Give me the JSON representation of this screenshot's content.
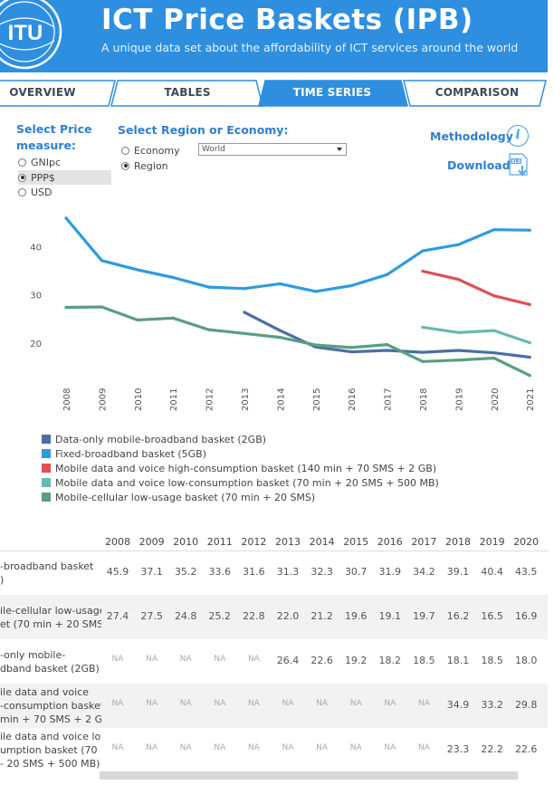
{
  "header": {
    "logo_text": "ITU",
    "title": "ICT Price Baskets (IPB)",
    "subtitle": "A unique data set about the affordability of ICT services around the world",
    "bg_color": "#2e8fe0"
  },
  "tabs": [
    {
      "label": "OVERVIEW",
      "active": false
    },
    {
      "label": "TABLES",
      "active": false
    },
    {
      "label": "TIME SERIES",
      "active": true
    },
    {
      "label": "COMPARISON",
      "active": false
    }
  ],
  "controls": {
    "price_measure_title": "Select Price measure:",
    "price_options": [
      {
        "label": "GNIpc",
        "selected": false
      },
      {
        "label": "PPP$",
        "selected": true
      },
      {
        "label": "USD",
        "selected": false
      }
    ],
    "region_title": "Select Region or Economy:",
    "region_options": [
      {
        "label": "Economy",
        "selected": false
      },
      {
        "label": "Region",
        "selected": true
      }
    ],
    "region_value": "World",
    "methodology_label": "Methodology",
    "methodology_icon": "info-icon",
    "download_label": "Download",
    "download_icon": "xls-download-icon",
    "download_icon_text": "XLS"
  },
  "chart_data": {
    "type": "line",
    "x": [
      2008,
      2009,
      2010,
      2011,
      2012,
      2013,
      2014,
      2015,
      2016,
      2017,
      2018,
      2019,
      2020,
      2021
    ],
    "ylim": [
      11,
      47
    ],
    "yticks": [
      20,
      30,
      40
    ],
    "grid": false,
    "legend_position": "bottom-left",
    "series": [
      {
        "name": "Data-only mobile-broadband basket (2GB)",
        "color": "#4a6fa5",
        "values": [
          null,
          null,
          null,
          null,
          null,
          26.4,
          22.6,
          19.2,
          18.2,
          18.5,
          18.1,
          18.5,
          18.0,
          17.1
        ]
      },
      {
        "name": "Fixed-broadband basket (5GB)",
        "color": "#2e9be0",
        "values": [
          45.9,
          37.1,
          35.2,
          33.6,
          31.6,
          31.3,
          32.3,
          30.7,
          31.9,
          34.2,
          39.1,
          40.4,
          43.5,
          43.4
        ]
      },
      {
        "name": "Mobile data and voice high-consumption basket (140 min + 70 SMS + 2 GB)",
        "color": "#e05050",
        "values": [
          null,
          null,
          null,
          null,
          null,
          null,
          null,
          null,
          null,
          null,
          34.9,
          33.2,
          29.8,
          28.0
        ]
      },
      {
        "name": "Mobile data and voice low-consumption basket (70 min + 20 SMS + 500 MB)",
        "color": "#6ab8b0",
        "values": [
          null,
          null,
          null,
          null,
          null,
          null,
          null,
          null,
          null,
          null,
          23.3,
          22.2,
          22.6,
          20.1
        ]
      },
      {
        "name": "Mobile-cellular low-usage basket (70 min + 20 SMS)",
        "color": "#5a9e80",
        "values": [
          27.4,
          27.5,
          24.8,
          25.2,
          22.8,
          22.0,
          21.2,
          19.6,
          19.1,
          19.7,
          16.2,
          16.5,
          16.9,
          13.3
        ]
      }
    ]
  },
  "table": {
    "years": [
      2008,
      2009,
      2010,
      2011,
      2012,
      2013,
      2014,
      2015,
      2016,
      2017,
      2018,
      2019,
      2020
    ],
    "rows": [
      {
        "label_lines": [
          "-broadband basket",
          ")"
        ],
        "values": [
          "45.9",
          "37.1",
          "35.2",
          "33.6",
          "31.6",
          "31.3",
          "32.3",
          "30.7",
          "31.9",
          "34.2",
          "39.1",
          "40.4",
          "43.5"
        ]
      },
      {
        "label_lines": [
          "ile-cellular low-usage",
          "et (70 min + 20 SMS)"
        ],
        "values": [
          "27.4",
          "27.5",
          "24.8",
          "25.2",
          "22.8",
          "22.0",
          "21.2",
          "19.6",
          "19.1",
          "19.7",
          "16.2",
          "16.5",
          "16.9"
        ]
      },
      {
        "label_lines": [
          "-only mobile-",
          "dband basket (2GB)"
        ],
        "values": [
          "NA",
          "NA",
          "NA",
          "NA",
          "NA",
          "26.4",
          "22.6",
          "19.2",
          "18.2",
          "18.5",
          "18.1",
          "18.5",
          "18.0"
        ]
      },
      {
        "label_lines": [
          "ile data and voice",
          "-consumption basket",
          "min + 70 SMS + 2 GB)"
        ],
        "values": [
          "NA",
          "NA",
          "NA",
          "NA",
          "NA",
          "NA",
          "NA",
          "NA",
          "NA",
          "NA",
          "34.9",
          "33.2",
          "29.8"
        ]
      },
      {
        "label_lines": [
          "ile data and voice low-",
          "umption basket (70",
          "- 20 SMS + 500 MB)"
        ],
        "values": [
          "NA",
          "NA",
          "NA",
          "NA",
          "NA",
          "NA",
          "NA",
          "NA",
          "NA",
          "NA",
          "23.3",
          "22.2",
          "22.6"
        ]
      }
    ]
  }
}
